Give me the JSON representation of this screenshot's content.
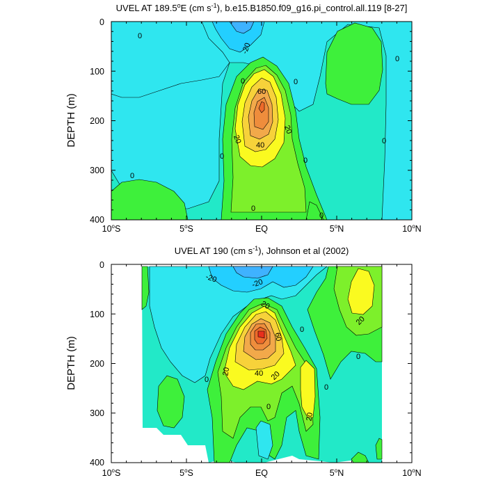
{
  "colors": {
    "neg_30": "#3fb2ff",
    "neg_20": "#23cfff",
    "neg_10": "#2fe6ef",
    "zero": "#22e9c8",
    "pos_10": "#3ef03b",
    "pos_20": "#7df02b",
    "pos_30": "#fafa20",
    "pos_40": "#f7d23a",
    "pos_50": "#f2a94a",
    "pos_60": "#ef8d3c",
    "pos_70": "#ed6a2a",
    "pos_80": "#e82f1d"
  },
  "chart_data": [
    {
      "type": "contour",
      "title_html": "UVEL AT 189.5°E (cm s⁻¹), b.e15.B1850.f09_g16.pi_control.all.119 [8-27]",
      "title": "UVEL AT 189.5",
      "title_deg": "o",
      "title_mid": "E (cm s",
      "title_sup": "-1",
      "title_end": "), b.e15.B1850.f09_g16.pi_control.all.119 [8-27]",
      "ylabel": "DEPTH (m)",
      "xlim": [
        "10°S",
        "10°N"
      ],
      "ylim": [
        0,
        400
      ],
      "x_ticks": [
        "10",
        "5",
        "EQ",
        "5",
        "10"
      ],
      "x_tick_suffix": [
        "S",
        "S",
        "",
        "N",
        "N"
      ],
      "y_ticks": [
        "0",
        "100",
        "200",
        "300",
        "400"
      ],
      "contour_labels": [
        "0",
        "-20",
        "0",
        "0",
        "60",
        "0",
        "20",
        "20",
        "40",
        "0",
        "0",
        "0",
        "0",
        "0",
        "0"
      ],
      "peak_value": 70,
      "peak_lat": 0,
      "peak_depth": 165
    },
    {
      "type": "contour",
      "title": "UVEL AT 190 (cm s",
      "title_sup": "-1",
      "title_end": "), Johnson et al (2002)",
      "ylabel": "DEPTH (m)",
      "xlim": [
        "10°S",
        "10°N"
      ],
      "ylim": [
        0,
        400
      ],
      "x_ticks": [
        "10",
        "5",
        "EQ",
        "5",
        "10"
      ],
      "x_tick_suffix": [
        "S",
        "S",
        "",
        "N",
        "N"
      ],
      "y_ticks": [
        "0",
        "100",
        "200",
        "300",
        "400"
      ],
      "contour_labels": [
        "-20",
        "-20",
        "20",
        "0",
        "20",
        "60",
        "20",
        "40",
        "20",
        "0",
        "0",
        "0",
        "20",
        "0",
        "20"
      ],
      "peak_value": 80,
      "peak_lat": 0,
      "peak_depth": 150
    }
  ]
}
